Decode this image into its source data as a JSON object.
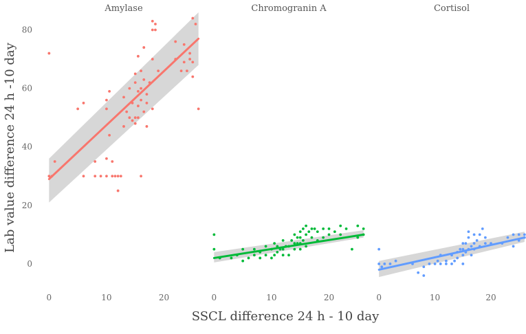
{
  "chart_data": {
    "type": "scatter",
    "xlabel": "SSCL difference 24 h - 10 day",
    "ylabel": "Lab value difference 24 h -10 day",
    "x_ticks": [
      0,
      10,
      20
    ],
    "y_ticks": [
      0,
      20,
      40,
      60,
      80
    ],
    "xlim": [
      -1,
      27
    ],
    "ylim": [
      -8,
      86
    ],
    "grid": false,
    "panels": [
      {
        "title": "Amylase",
        "color": "#F8766D",
        "points": [
          [
            0,
            72
          ],
          [
            0,
            30
          ],
          [
            1,
            35
          ],
          [
            0.5,
            30
          ],
          [
            5,
            53
          ],
          [
            6,
            55
          ],
          [
            6,
            30
          ],
          [
            8,
            30
          ],
          [
            8,
            35
          ],
          [
            9,
            30
          ],
          [
            10,
            30
          ],
          [
            10,
            36
          ],
          [
            10,
            53
          ],
          [
            10,
            56
          ],
          [
            10.5,
            59
          ],
          [
            10.5,
            44
          ],
          [
            11,
            30
          ],
          [
            11,
            35
          ],
          [
            11.5,
            30
          ],
          [
            12,
            30
          ],
          [
            12,
            25
          ],
          [
            12.5,
            30
          ],
          [
            13,
            47
          ],
          [
            13,
            57
          ],
          [
            13.5,
            52
          ],
          [
            14,
            60
          ],
          [
            14,
            50
          ],
          [
            14.5,
            49
          ],
          [
            14.5,
            55
          ],
          [
            15,
            65
          ],
          [
            15,
            62
          ],
          [
            15,
            50
          ],
          [
            15,
            48
          ],
          [
            15.5,
            71
          ],
          [
            15.5,
            59
          ],
          [
            15.5,
            54
          ],
          [
            15.5,
            50
          ],
          [
            16,
            66
          ],
          [
            16,
            60
          ],
          [
            16,
            56
          ],
          [
            16,
            30
          ],
          [
            16.5,
            74
          ],
          [
            16.5,
            63
          ],
          [
            16.5,
            52
          ],
          [
            17,
            58
          ],
          [
            17,
            55
          ],
          [
            17,
            47
          ],
          [
            17.5,
            62
          ],
          [
            18,
            83
          ],
          [
            18,
            80
          ],
          [
            18,
            70
          ],
          [
            18,
            53
          ],
          [
            18.5,
            82
          ],
          [
            18.5,
            80
          ],
          [
            19,
            66
          ],
          [
            22,
            76
          ],
          [
            22,
            70
          ],
          [
            23,
            66
          ],
          [
            23.5,
            75
          ],
          [
            23.5,
            69
          ],
          [
            24,
            66
          ],
          [
            24.5,
            72
          ],
          [
            24.5,
            70
          ],
          [
            25,
            84
          ],
          [
            25,
            69
          ],
          [
            25,
            64
          ],
          [
            25.5,
            82
          ],
          [
            26,
            53
          ]
        ],
        "trend": {
          "x": [
            0,
            26
          ],
          "y": [
            29,
            77
          ]
        },
        "band": {
          "upper": [
            36,
            86
          ],
          "lower": [
            21,
            68
          ]
        }
      },
      {
        "title": "Chromogranin A",
        "color": "#00BA38",
        "points": [
          [
            0,
            10
          ],
          [
            0,
            5
          ],
          [
            1,
            2
          ],
          [
            3,
            2
          ],
          [
            4,
            3
          ],
          [
            5,
            5
          ],
          [
            5,
            1
          ],
          [
            6,
            2
          ],
          [
            7,
            5
          ],
          [
            7,
            3
          ],
          [
            8,
            4
          ],
          [
            8,
            2
          ],
          [
            9,
            6
          ],
          [
            9,
            3
          ],
          [
            10,
            5
          ],
          [
            10,
            2
          ],
          [
            10.5,
            7
          ],
          [
            10.5,
            3
          ],
          [
            11,
            6
          ],
          [
            11,
            4
          ],
          [
            11.5,
            5
          ],
          [
            12,
            8
          ],
          [
            12,
            5
          ],
          [
            12,
            3
          ],
          [
            12.5,
            6
          ],
          [
            13,
            6
          ],
          [
            13,
            3
          ],
          [
            13.5,
            8
          ],
          [
            14,
            10
          ],
          [
            14,
            7
          ],
          [
            14,
            5
          ],
          [
            14.5,
            9
          ],
          [
            14.5,
            7
          ],
          [
            15,
            11
          ],
          [
            15,
            9
          ],
          [
            15,
            7
          ],
          [
            15,
            5
          ],
          [
            15.5,
            12
          ],
          [
            15.5,
            8
          ],
          [
            16,
            13
          ],
          [
            16,
            10
          ],
          [
            16,
            6
          ],
          [
            16.5,
            11
          ],
          [
            17,
            12
          ],
          [
            17,
            9
          ],
          [
            17.5,
            12
          ],
          [
            18,
            11
          ],
          [
            18,
            8
          ],
          [
            19,
            12
          ],
          [
            19,
            9
          ],
          [
            20,
            12
          ],
          [
            20,
            10
          ],
          [
            21,
            11
          ],
          [
            22,
            13
          ],
          [
            22,
            10
          ],
          [
            23,
            12
          ],
          [
            24,
            5
          ],
          [
            25,
            13
          ],
          [
            25,
            9
          ],
          [
            26,
            12
          ],
          [
            26,
            10
          ]
        ],
        "trend": {
          "x": [
            0,
            26
          ],
          "y": [
            2,
            10
          ]
        },
        "band": {
          "upper": [
            4,
            11.5
          ],
          "lower": [
            0.5,
            9
          ]
        }
      },
      {
        "title": "Cortisol",
        "color": "#619CFF",
        "points": [
          [
            0,
            5
          ],
          [
            0,
            0
          ],
          [
            0.5,
            -1
          ],
          [
            1,
            0
          ],
          [
            2,
            0
          ],
          [
            3,
            1
          ],
          [
            6,
            0
          ],
          [
            7,
            -3
          ],
          [
            8,
            -4
          ],
          [
            8,
            -1
          ],
          [
            9,
            0
          ],
          [
            10,
            0
          ],
          [
            10.5,
            1
          ],
          [
            11,
            0
          ],
          [
            11,
            3
          ],
          [
            12,
            1
          ],
          [
            12,
            0
          ],
          [
            13,
            0
          ],
          [
            13,
            3
          ],
          [
            13.5,
            1
          ],
          [
            14,
            2
          ],
          [
            14,
            4
          ],
          [
            14.5,
            5
          ],
          [
            15,
            0
          ],
          [
            15,
            3
          ],
          [
            15,
            5
          ],
          [
            15,
            7
          ],
          [
            15.5,
            4
          ],
          [
            15.5,
            7
          ],
          [
            16,
            5
          ],
          [
            16,
            9
          ],
          [
            16,
            11
          ],
          [
            16.5,
            3
          ],
          [
            16.5,
            6
          ],
          [
            17,
            10
          ],
          [
            17,
            7
          ],
          [
            17,
            5
          ],
          [
            17.5,
            8
          ],
          [
            18,
            10
          ],
          [
            18,
            6
          ],
          [
            18.5,
            12
          ],
          [
            19,
            9
          ],
          [
            19,
            7
          ],
          [
            20,
            7
          ],
          [
            22,
            7
          ],
          [
            23,
            9
          ],
          [
            24,
            6
          ],
          [
            24,
            10
          ],
          [
            25,
            10
          ],
          [
            25,
            8
          ],
          [
            26,
            10
          ],
          [
            26,
            9
          ],
          [
            26.5,
            8
          ]
        ],
        "trend": {
          "x": [
            0,
            26
          ],
          "y": [
            -2,
            9
          ]
        },
        "band": {
          "upper": [
            1,
            11
          ],
          "lower": [
            -4.5,
            7.5
          ]
        }
      }
    ]
  }
}
